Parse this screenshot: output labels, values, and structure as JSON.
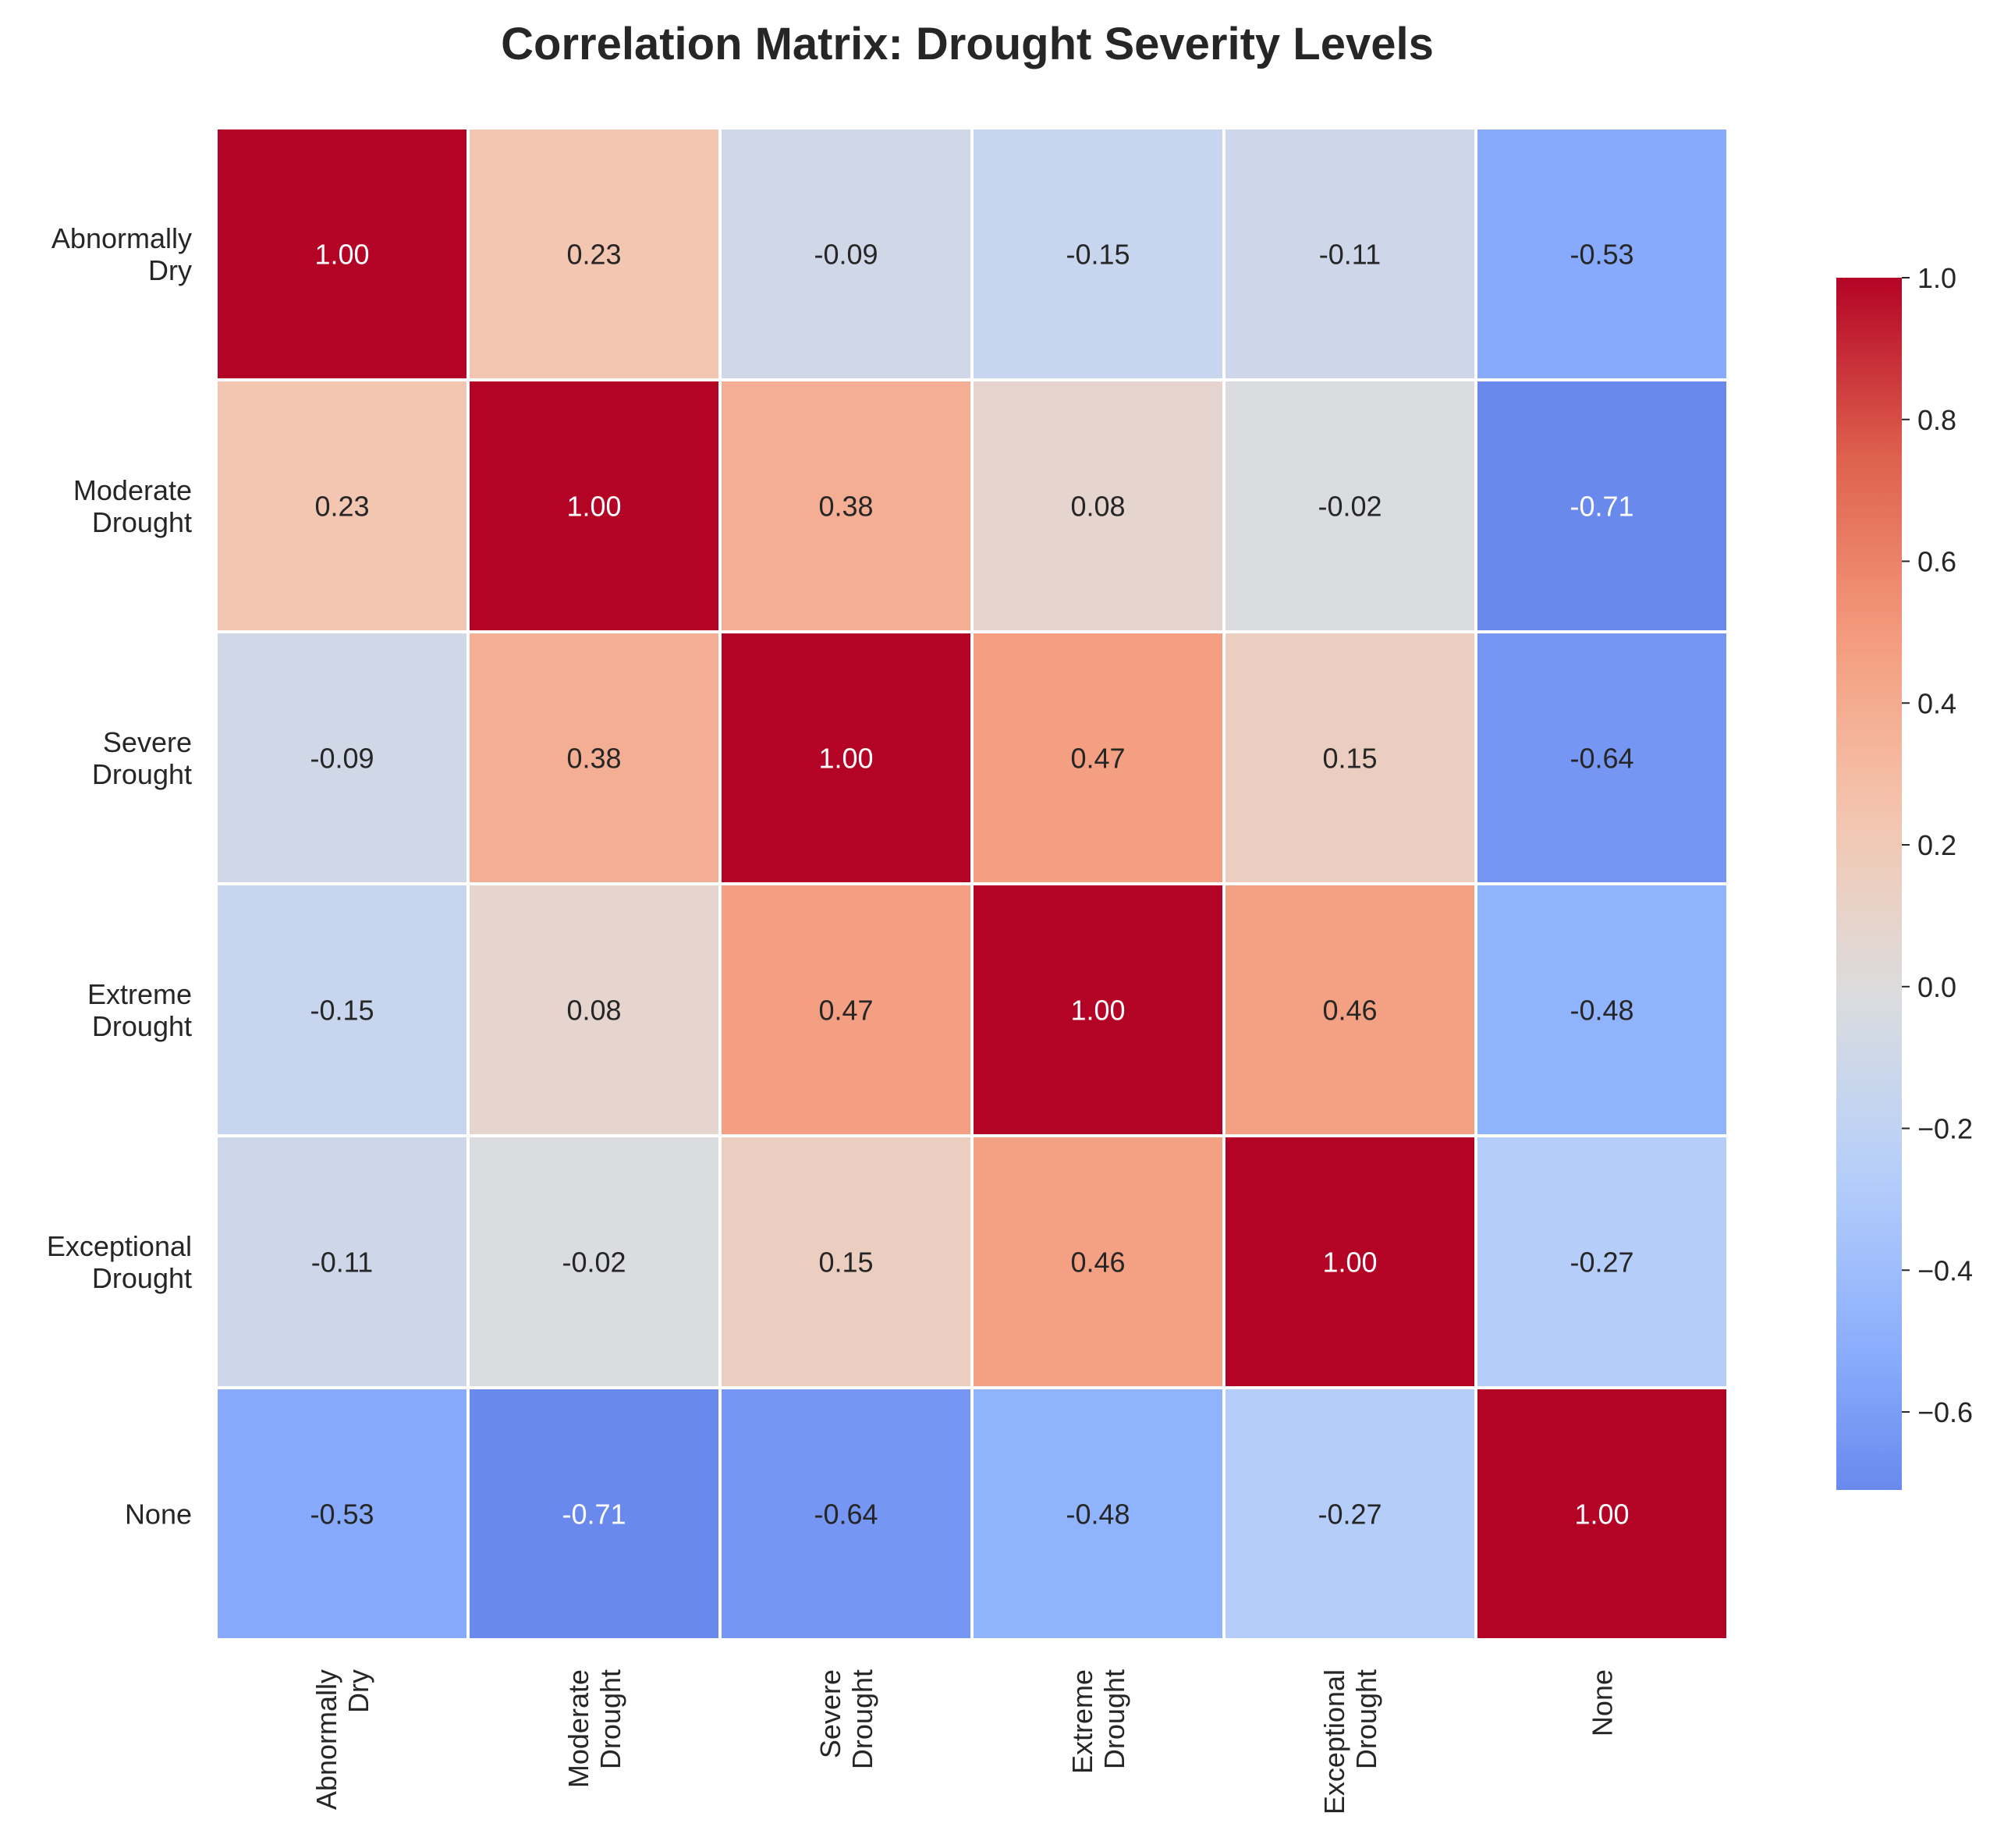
{
  "chart_data": {
    "type": "heatmap",
    "title": "Correlation Matrix: Drought Severity Levels",
    "xlabel": "",
    "ylabel": "",
    "categories": [
      [
        "Abnormally",
        "Dry"
      ],
      [
        "Moderate",
        "Drought"
      ],
      [
        "Severe",
        "Drought"
      ],
      [
        "Extreme",
        "Drought"
      ],
      [
        "Exceptional",
        "Drought"
      ],
      [
        "None"
      ]
    ],
    "matrix": [
      [
        1.0,
        0.23,
        -0.09,
        -0.15,
        -0.11,
        -0.53
      ],
      [
        0.23,
        1.0,
        0.38,
        0.08,
        -0.02,
        -0.71
      ],
      [
        -0.09,
        0.38,
        1.0,
        0.47,
        0.15,
        -0.64
      ],
      [
        -0.15,
        0.08,
        0.47,
        1.0,
        0.46,
        -0.48
      ],
      [
        -0.11,
        -0.02,
        0.15,
        0.46,
        1.0,
        -0.27
      ],
      [
        -0.53,
        -0.71,
        -0.64,
        -0.48,
        -0.27,
        1.0
      ]
    ],
    "value_format": "0.00",
    "colormap": "coolwarm",
    "color_range": [
      -0.71,
      1.0
    ],
    "colorbar": {
      "ticks": [
        -0.6,
        -0.4,
        -0.2,
        0.0,
        0.2,
        0.4,
        0.6,
        0.8,
        1.0
      ],
      "tick_labels": [
        "−0.6",
        "−0.4",
        "−0.2",
        "0.0",
        "0.2",
        "0.4",
        "0.6",
        "0.8",
        "1.0"
      ]
    },
    "grid": false,
    "legend": "right"
  }
}
